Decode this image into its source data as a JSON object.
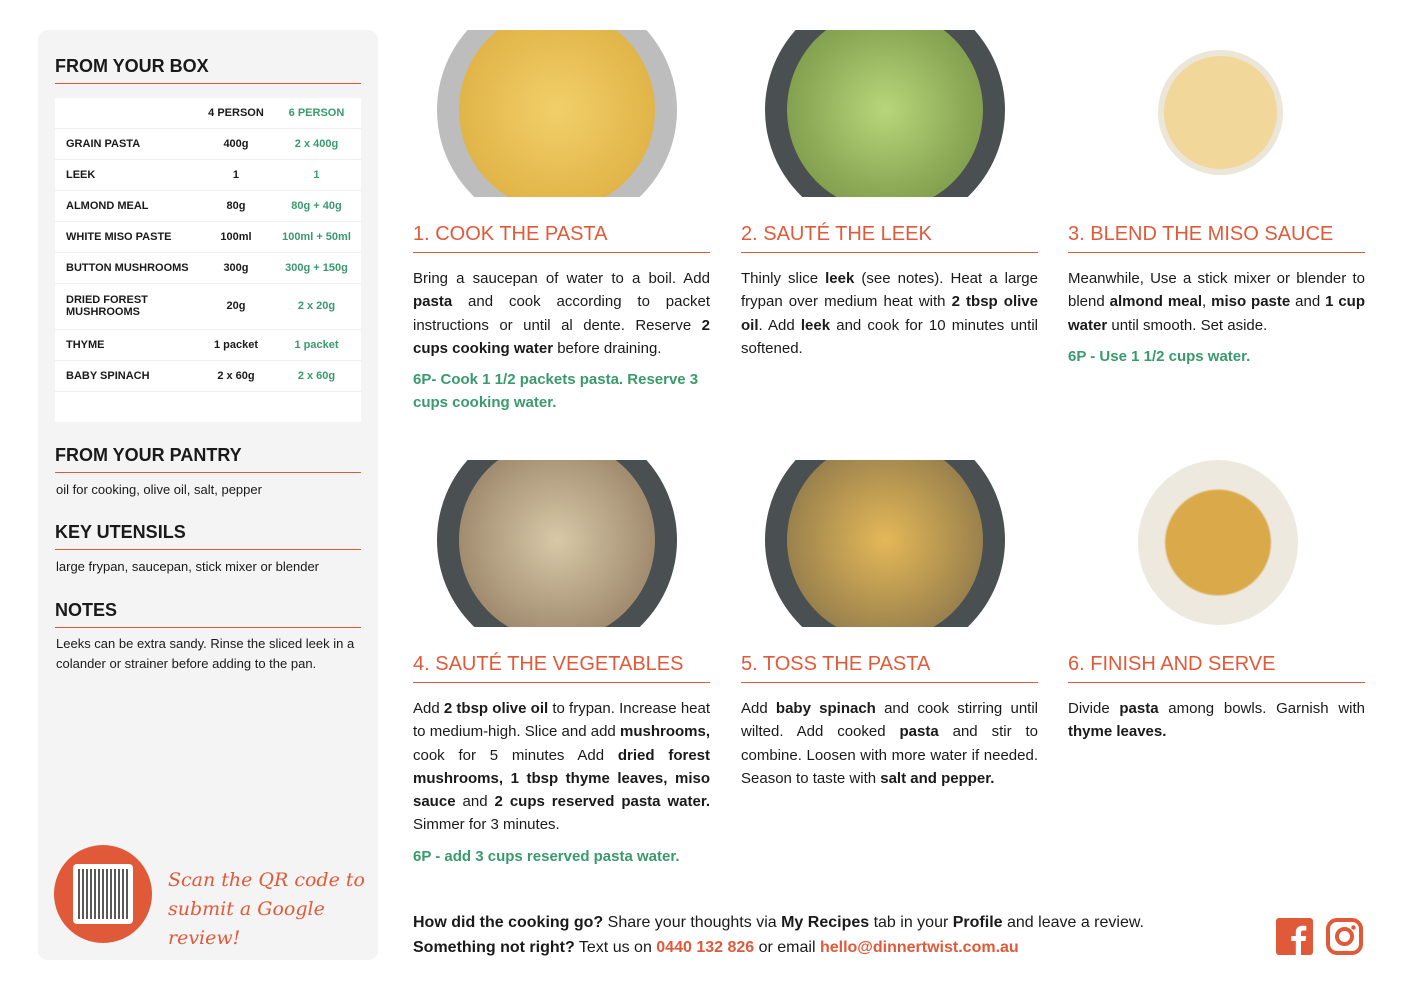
{
  "box": {
    "title": "FROM YOUR BOX",
    "headers": [
      "",
      "4 PERSON",
      "6 PERSON"
    ],
    "rows": [
      [
        "GRAIN PASTA",
        "400g",
        "2 x 400g"
      ],
      [
        "LEEK",
        "1",
        "1"
      ],
      [
        "ALMOND MEAL",
        "80g",
        "80g + 40g"
      ],
      [
        "WHITE MISO PASTE",
        "100ml",
        "100ml + 50ml"
      ],
      [
        "BUTTON MUSHROOMS",
        "300g",
        "300g + 150g"
      ],
      [
        "DRIED FOREST MUSHROOMS",
        "20g",
        "2 x 20g"
      ],
      [
        "THYME",
        "1 packet",
        "1 packet"
      ],
      [
        "BABY SPINACH",
        "2 x 60g",
        "2 x 60g"
      ]
    ]
  },
  "pantry": {
    "title": "FROM YOUR PANTRY",
    "text": "oil for cooking, olive oil, salt, pepper"
  },
  "utensils": {
    "title": "KEY UTENSILS",
    "text": "large frypan, saucepan, stick mixer or blender"
  },
  "notes": {
    "title": "NOTES",
    "text": "Leeks can be extra sandy. Rinse the sliced leek in a colander or strainer before adding to the pan."
  },
  "qr": {
    "text_line1": "Scan the QR code to",
    "text_line2": "submit a Google review!"
  },
  "colors": {
    "accent": "#e05a3a",
    "six_person": "#3a9a6e",
    "panel": "#f4f4f4"
  },
  "steps": [
    {
      "title": "1. COOK THE PASTA",
      "image": "pasta-in-saucepan",
      "body": [
        [
          "Bring a saucepan of water to a boil. Add ",
          0
        ],
        [
          "pasta",
          1
        ],
        [
          " and cook according to packet instructions or until al dente. Reserve ",
          0
        ],
        [
          "2 cups cooking water",
          1
        ],
        [
          " before draining.",
          0
        ]
      ],
      "six": "6P- Cook 1 1/2 packets pasta. Reserve 3 cups cooking water."
    },
    {
      "title": "2. SAUTÉ THE LEEK",
      "image": "leek-in-frypan",
      "body": [
        [
          "Thinly slice ",
          0
        ],
        [
          "leek",
          1
        ],
        [
          " (see notes). Heat a large frypan over medium heat with ",
          0
        ],
        [
          "2 tbsp olive oil",
          1
        ],
        [
          ". Add ",
          0
        ],
        [
          "leek",
          1
        ],
        [
          " and cook for 10 minutes until softened.",
          0
        ]
      ],
      "six": ""
    },
    {
      "title": "3. BLEND THE MISO SAUCE",
      "image": "miso-sauce-bowl",
      "body": [
        [
          "Meanwhile, Use a stick mixer or blender to blend ",
          0
        ],
        [
          "almond meal",
          1
        ],
        [
          ", ",
          0
        ],
        [
          "miso paste",
          1
        ],
        [
          " and ",
          0
        ],
        [
          "1 cup water",
          1
        ],
        [
          " until smooth. Set aside.",
          0
        ]
      ],
      "six": "6P - Use 1 1/2 cups water."
    },
    {
      "title": "4. SAUTÉ THE VEGETABLES",
      "image": "vegetables-in-frypan",
      "body": [
        [
          "Add ",
          0
        ],
        [
          "2 tbsp olive oil",
          1
        ],
        [
          " to frypan. Increase heat to medium-high. Slice and add ",
          0
        ],
        [
          "mushrooms,",
          1
        ],
        [
          " cook for 5 minutes Add ",
          0
        ],
        [
          "dried forest mushrooms, 1 tbsp thyme leaves, miso sauce",
          1
        ],
        [
          " and ",
          0
        ],
        [
          "2 cups reserved pasta water.",
          1
        ],
        [
          " Simmer for 3 minutes.",
          0
        ]
      ],
      "six": "6P - add 3 cups reserved pasta water."
    },
    {
      "title": "5. TOSS THE PASTA",
      "image": "pasta-in-frypan",
      "body": [
        [
          "Add ",
          0
        ],
        [
          "baby spinach",
          1
        ],
        [
          " and cook stirring until wilted. Add cooked ",
          0
        ],
        [
          "pasta",
          1
        ],
        [
          " and stir to combine. Loosen with more water if needed. Season to taste with ",
          0
        ],
        [
          "salt and pepper.",
          1
        ]
      ],
      "six": ""
    },
    {
      "title": "6. FINISH AND SERVE",
      "image": "plated-pasta",
      "body": [
        [
          "Divide ",
          0
        ],
        [
          "pasta",
          1
        ],
        [
          " among bowls. Garnish with ",
          0
        ],
        [
          "thyme leaves.",
          1
        ]
      ],
      "six": ""
    }
  ],
  "footer": {
    "q1": "How did the cooking go?",
    "t1": " Share your thoughts via ",
    "b1": "My Recipes",
    "t2": " tab in your ",
    "b2": "Profile",
    "t3": " and leave a review.",
    "q2": "Something not right?",
    "t4": " Text us on ",
    "phone": "0440 132 826",
    "t5": " or email ",
    "email": "hello@dinnertwist.com.au"
  },
  "social": [
    "facebook-icon",
    "instagram-icon"
  ]
}
